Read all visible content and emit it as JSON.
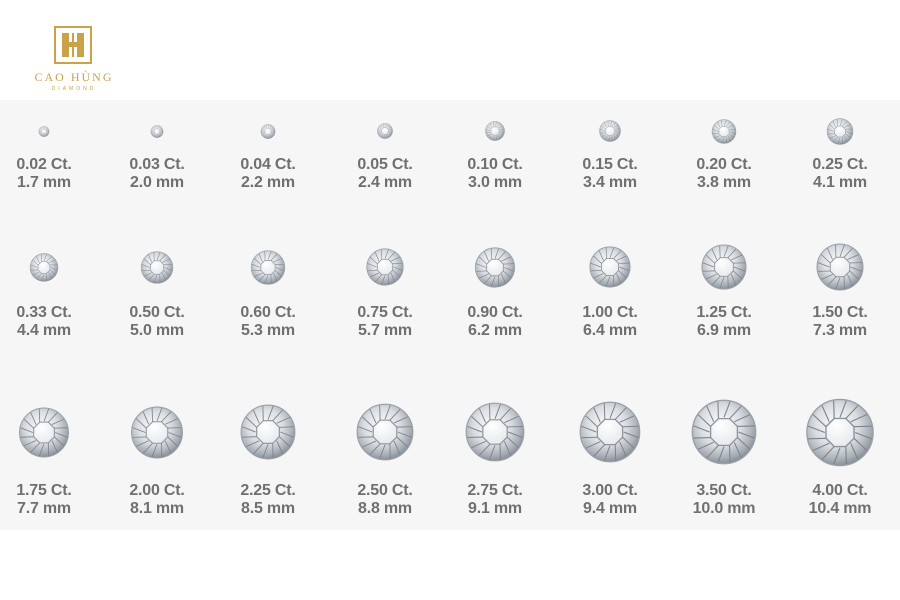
{
  "brand": {
    "name": "CAO HÙNG",
    "tagline": "DIAMOND"
  },
  "colors": {
    "brand_gold": "#c9a24a",
    "label_gray": "#707070",
    "panel_bg": "#f6f6f6"
  },
  "diamonds": [
    {
      "carat": "0.02 Ct.",
      "size": "1.7 mm"
    },
    {
      "carat": "0.03 Ct.",
      "size": "2.0 mm"
    },
    {
      "carat": "0.04 Ct.",
      "size": "2.2 mm"
    },
    {
      "carat": "0.05 Ct.",
      "size": "2.4 mm"
    },
    {
      "carat": "0.10 Ct.",
      "size": "3.0 mm"
    },
    {
      "carat": "0.15 Ct.",
      "size": "3.4 mm"
    },
    {
      "carat": "0.20 Ct.",
      "size": "3.8 mm"
    },
    {
      "carat": "0.25 Ct.",
      "size": "4.1 mm"
    },
    {
      "carat": "0.33 Ct.",
      "size": "4.4 mm"
    },
    {
      "carat": "0.50 Ct.",
      "size": "5.0 mm"
    },
    {
      "carat": "0.60 Ct.",
      "size": "5.3 mm"
    },
    {
      "carat": "0.75 Ct.",
      "size": "5.7 mm"
    },
    {
      "carat": "0.90 Ct.",
      "size": "6.2 mm"
    },
    {
      "carat": "1.00 Ct.",
      "size": "6.4 mm"
    },
    {
      "carat": "1.25 Ct.",
      "size": "6.9 mm"
    },
    {
      "carat": "1.50 Ct.",
      "size": "7.3 mm"
    },
    {
      "carat": "1.75 Ct.",
      "size": "7.7 mm"
    },
    {
      "carat": "2.00 Ct.",
      "size": "8.1 mm"
    },
    {
      "carat": "2.25 Ct.",
      "size": "8.5 mm"
    },
    {
      "carat": "2.50 Ct.",
      "size": "8.8 mm"
    },
    {
      "carat": "2.75 Ct.",
      "size": "9.1 mm"
    },
    {
      "carat": "3.00 Ct.",
      "size": "9.4 mm"
    },
    {
      "carat": "3.50 Ct.",
      "size": "10.0 mm"
    },
    {
      "carat": "4.00 Ct.",
      "size": "10.4 mm"
    }
  ]
}
